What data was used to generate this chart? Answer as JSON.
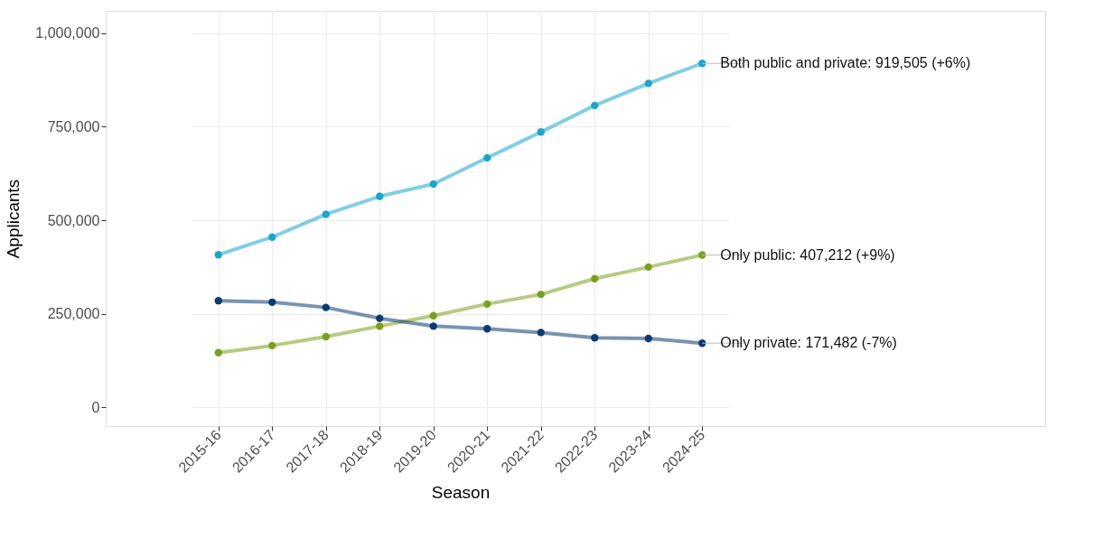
{
  "chart_data": {
    "type": "line",
    "xlabel": "Season",
    "ylabel": "Applicants",
    "categories": [
      "2015-16",
      "2016-17",
      "2017-18",
      "2018-19",
      "2019-20",
      "2020-21",
      "2021-22",
      "2022-23",
      "2023-24",
      "2024-25"
    ],
    "series": [
      {
        "color": "#1aa6cc",
        "values": [
          408000,
          455000,
          516000,
          564000,
          597000,
          667000,
          736000,
          807000,
          866000,
          919505
        ]
      },
      {
        "color": "#7aa11c",
        "values": [
          146000,
          165000,
          189000,
          217000,
          245000,
          276000,
          302000,
          344000,
          375000,
          407212
        ]
      },
      {
        "color": "#0b3b73",
        "values": [
          285000,
          281000,
          267000,
          238000,
          217000,
          210000,
          200000,
          186000,
          184000,
          171482
        ]
      }
    ],
    "annotations": [
      {
        "text": "Both public and private: 919,505 (+6%)",
        "x": "2024-25",
        "y": 919505
      },
      {
        "text": "Only public: 407,212 (+9%)",
        "x": "2024-25",
        "y": 407212
      },
      {
        "text": "Only private: 171,482 (-7%)",
        "x": "2024-25",
        "y": 171482
      }
    ],
    "ylim": [
      -50000,
      1060000
    ],
    "yticks": [
      {
        "value": 0,
        "label": "0"
      },
      {
        "value": 250000,
        "label": "250,000"
      },
      {
        "value": 500000,
        "label": "500,000"
      },
      {
        "value": 750000,
        "label": "750,000"
      },
      {
        "value": 1000000,
        "label": "1,000,000"
      }
    ],
    "grid": true,
    "marker": "circle",
    "line_style": "solid"
  }
}
